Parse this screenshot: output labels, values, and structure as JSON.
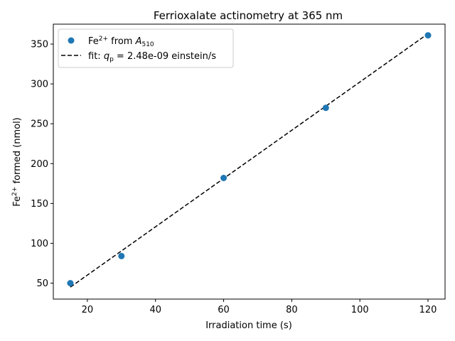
{
  "chart_data": {
    "type": "scatter",
    "title": "Ferrioxalate actinometry at 365 nm",
    "xlabel": "Irradiation time (s)",
    "ylabel": {
      "prefix": "Fe",
      "sup": "2+",
      "suffix": " formed (nmol)"
    },
    "xlim": [
      10,
      125
    ],
    "ylim": [
      30,
      375
    ],
    "xticks": [
      20,
      40,
      60,
      80,
      100,
      120
    ],
    "yticks": [
      50,
      100,
      150,
      200,
      250,
      300,
      350
    ],
    "series": [
      {
        "kind": "points",
        "x": [
          15,
          30,
          60,
          90,
          120
        ],
        "y": [
          50,
          84,
          182,
          270,
          361
        ],
        "color": "#1f77b4",
        "label": {
          "main": "Fe",
          "sup": "2+",
          "mid": " from ",
          "var": "A",
          "sub": "510"
        }
      },
      {
        "kind": "fit-line",
        "x": [
          15,
          120
        ],
        "y": [
          45,
          363
        ],
        "color": "#000000",
        "style": "dashed",
        "label": {
          "prefix": "fit: ",
          "var": "q",
          "sub": "p",
          "suffix": " = 2.48e-09 einstein/s"
        }
      }
    ],
    "legend": "top-left",
    "grid": false
  }
}
